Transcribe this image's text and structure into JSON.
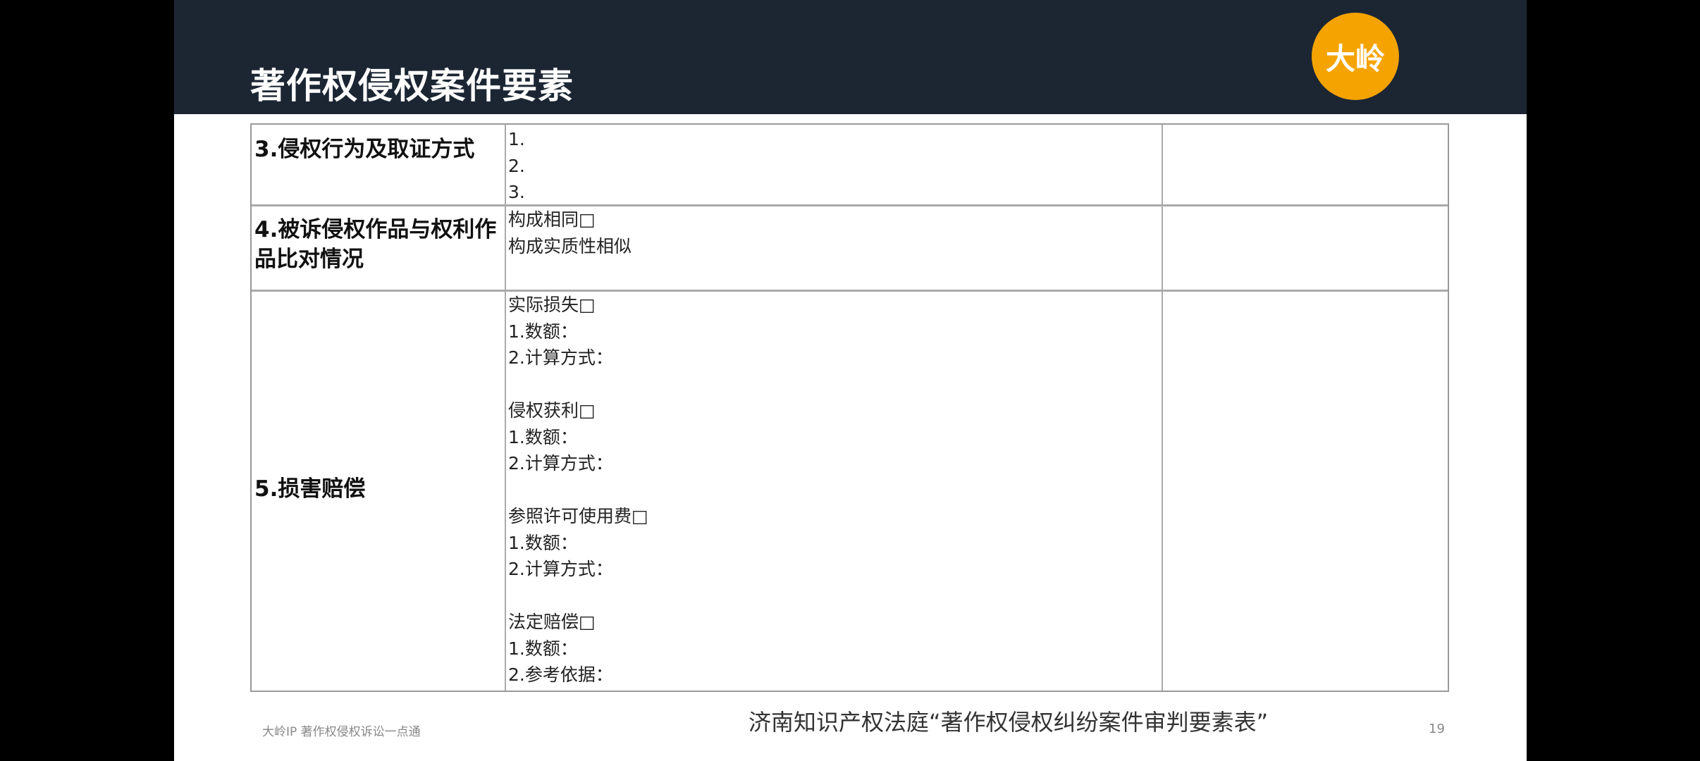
{
  "header": {
    "title": "著作权侵权案件要素",
    "logo_text": "大岭",
    "colors": {
      "band": "#1c2633",
      "logo": "#f5a300"
    }
  },
  "table": {
    "rows": [
      {
        "label": "3.侵权行为及取证方式",
        "content": [
          "1.",
          "2.",
          "3."
        ],
        "note": ""
      },
      {
        "label": "4.被诉侵权作品与权利作品比对情况",
        "content": [
          "构成相同□",
          "构成实质性相似"
        ],
        "note": ""
      },
      {
        "label": "5.损害赔偿",
        "content": [
          "实际损失□",
          "1.数额：",
          "2.计算方式：",
          "",
          "侵权获利□",
          "1.数额：",
          "2.计算方式：",
          "",
          "参照许可使用费□",
          "1.数额：",
          "2.计算方式：",
          "",
          "法定赔偿□",
          "1.数额：",
          "2.参考依据："
        ],
        "note": ""
      }
    ]
  },
  "footer": {
    "left": "大岭IP 著作权侵权诉讼一点通",
    "caption": "济南知识产权法庭“著作权侵权纠纷案件审判要素表”",
    "page": "19"
  }
}
